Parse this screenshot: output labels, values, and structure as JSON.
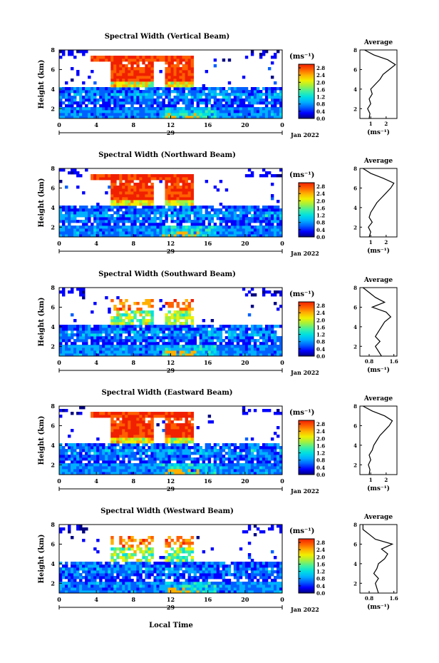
{
  "figure": {
    "common": {
      "colorbar_unit": "(ms⁻¹)",
      "colorbar_ticks": [
        "0.0",
        "0.4",
        "0.8",
        "1.2",
        "1.6",
        "2.0",
        "2.4",
        "2.8"
      ],
      "colorbar_range": [
        0.0,
        3.0
      ],
      "colorbar_colors": [
        "#000080",
        "#0000ff",
        "#0060ff",
        "#00b0ff",
        "#00e0e0",
        "#40f0a0",
        "#a0f040",
        "#f0f000",
        "#ffb000",
        "#ff6000",
        "#f02000"
      ],
      "time_ticks": [
        "0",
        "4",
        "8",
        "12",
        "16",
        "20",
        "0"
      ],
      "date_tick": "29",
      "date_label": "Jan 2022",
      "height_ticks": [
        "2",
        "4",
        "6",
        "8"
      ],
      "ylabel": "Height (km)",
      "average_title": "Average",
      "average_xlabel": "(ms⁻¹)",
      "xlabel": "Local Time"
    },
    "panels": [
      {
        "title": "Spectral Width (Vertical Beam)",
        "avg_ticks": [
          "1",
          "2"
        ]
      },
      {
        "title": "Spectral Width (Northward Beam)",
        "avg_ticks": [
          "1",
          "2"
        ]
      },
      {
        "title": "Spectral Width (Southward Beam)",
        "avg_ticks": [
          "0.8",
          "1.6"
        ]
      },
      {
        "title": "Spectral Width (Eastward Beam)",
        "avg_ticks": [
          "1",
          "2"
        ]
      },
      {
        "title": "Spectral Width (Westward Beam)",
        "avg_ticks": [
          "0.8",
          "1.6"
        ]
      }
    ]
  },
  "chart_data": [
    {
      "type": "heatmap",
      "title": "Spectral Width (Vertical Beam)",
      "ylabel": "Height (km)",
      "ylim": [
        1,
        8
      ],
      "x_ticks": [
        "0",
        "4",
        "8",
        "12",
        "16",
        "20",
        "0"
      ],
      "colorbar": {
        "label": "(ms⁻¹)",
        "range": [
          0.0,
          3.0
        ]
      },
      "average_profile": {
        "title": "Average",
        "xlabel": "(ms⁻¹)",
        "xlim": [
          0.3,
          2.7
        ],
        "height": [
          1.0,
          1.5,
          2.0,
          2.5,
          3.0,
          3.5,
          4.0,
          4.5,
          5.0,
          5.5,
          6.0,
          6.5,
          7.0,
          7.5,
          8.0
        ],
        "value": [
          0.9,
          0.95,
          0.8,
          1.0,
          0.9,
          1.1,
          1.0,
          1.3,
          1.6,
          1.8,
          2.2,
          2.6,
          2.1,
          1.2,
          0.6
        ]
      }
    },
    {
      "type": "heatmap",
      "title": "Spectral Width (Northward Beam)",
      "ylabel": "Height (km)",
      "ylim": [
        1,
        8
      ],
      "x_ticks": [
        "0",
        "4",
        "8",
        "12",
        "16",
        "20",
        "0"
      ],
      "colorbar": {
        "label": "(ms⁻¹)",
        "range": [
          0.0,
          3.0
        ]
      },
      "average_profile": {
        "title": "Average",
        "xlabel": "(ms⁻¹)",
        "xlim": [
          0.3,
          2.7
        ],
        "height": [
          1.0,
          1.5,
          2.0,
          2.5,
          3.0,
          3.5,
          4.0,
          4.5,
          5.0,
          5.5,
          6.0,
          6.5,
          7.0,
          7.5,
          8.0
        ],
        "value": [
          0.9,
          1.0,
          0.85,
          1.1,
          0.9,
          1.0,
          1.2,
          1.4,
          1.7,
          2.0,
          2.3,
          2.5,
          1.8,
          1.0,
          0.5
        ]
      }
    },
    {
      "type": "heatmap",
      "title": "Spectral Width (Southward Beam)",
      "ylabel": "Height (km)",
      "ylim": [
        1,
        8
      ],
      "x_ticks": [
        "0",
        "4",
        "8",
        "12",
        "16",
        "20",
        "0"
      ],
      "colorbar": {
        "label": "(ms⁻¹)",
        "range": [
          0.0,
          3.0
        ]
      },
      "average_profile": {
        "title": "Average",
        "xlabel": "(ms⁻¹)",
        "xlim": [
          0.5,
          1.7
        ],
        "height": [
          1.0,
          1.5,
          2.0,
          2.5,
          3.0,
          3.5,
          4.0,
          4.5,
          5.0,
          5.5,
          6.0,
          6.5,
          7.0,
          7.5,
          8.0
        ],
        "value": [
          1.2,
          1.1,
          1.0,
          1.15,
          1.0,
          1.1,
          1.2,
          1.3,
          1.5,
          1.35,
          0.9,
          1.3,
          1.0,
          0.8,
          0.6
        ]
      }
    },
    {
      "type": "heatmap",
      "title": "Spectral Width (Eastward Beam)",
      "ylabel": "Height (km)",
      "ylim": [
        1,
        8
      ],
      "x_ticks": [
        "0",
        "4",
        "8",
        "12",
        "16",
        "20",
        "0"
      ],
      "colorbar": {
        "label": "(ms⁻¹)",
        "range": [
          0.0,
          3.0
        ]
      },
      "average_profile": {
        "title": "Average",
        "xlabel": "(ms⁻¹)",
        "xlim": [
          0.3,
          2.7
        ],
        "height": [
          1.0,
          1.5,
          2.0,
          2.5,
          3.0,
          3.5,
          4.0,
          4.5,
          5.0,
          5.5,
          6.0,
          6.5,
          7.0,
          7.5,
          8.0
        ],
        "value": [
          0.9,
          0.95,
          0.85,
          1.0,
          0.9,
          1.1,
          1.2,
          1.4,
          1.6,
          1.9,
          2.2,
          2.4,
          1.9,
          1.1,
          0.5
        ]
      }
    },
    {
      "type": "heatmap",
      "title": "Spectral Width (Westward Beam)",
      "ylabel": "Height (km)",
      "ylim": [
        1,
        8
      ],
      "x_ticks": [
        "0",
        "4",
        "8",
        "12",
        "16",
        "20",
        "0"
      ],
      "colorbar": {
        "label": "(ms⁻¹)",
        "range": [
          0.0,
          3.0
        ]
      },
      "average_profile": {
        "title": "Average",
        "xlabel": "(ms⁻¹)",
        "xlim": [
          0.5,
          1.7
        ],
        "height": [
          1.0,
          1.5,
          2.0,
          2.5,
          3.0,
          3.5,
          4.0,
          4.5,
          5.0,
          5.5,
          6.0,
          6.5,
          7.0,
          7.5,
          8.0
        ],
        "value": [
          1.1,
          1.05,
          1.0,
          1.1,
          0.95,
          1.05,
          1.1,
          1.3,
          1.4,
          1.2,
          1.55,
          1.0,
          0.8,
          0.6,
          0.6
        ]
      }
    }
  ]
}
